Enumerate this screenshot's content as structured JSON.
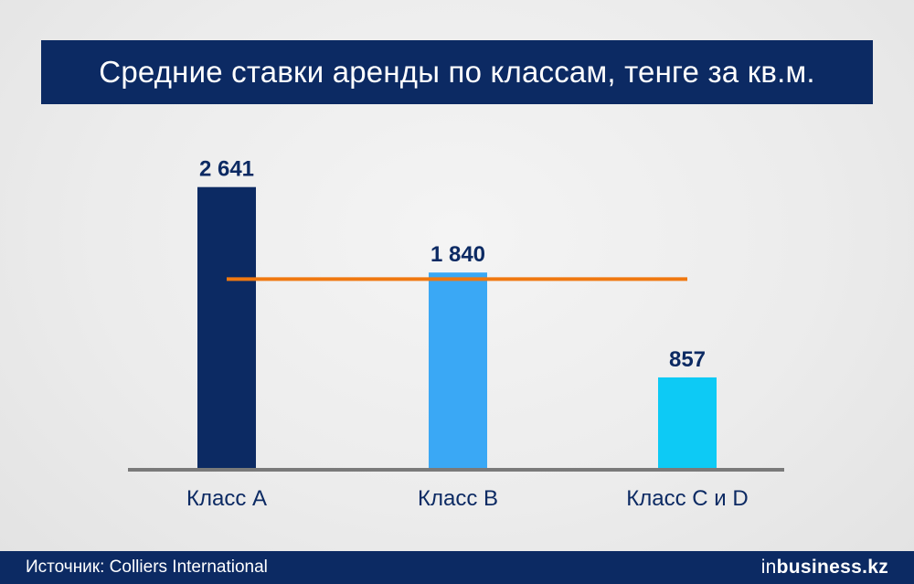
{
  "title": "Средние ставки аренды по классам, тенге за кв.м.",
  "chart_data": {
    "type": "bar",
    "categories": [
      "Класс А",
      "Класс В",
      "Класс С и D"
    ],
    "values": [
      2641,
      1840,
      857
    ],
    "value_labels": [
      "2 641",
      "1 840",
      "857"
    ],
    "bar_colors": [
      "#0c2a63",
      "#3aa8f5",
      "#0dcaf5"
    ],
    "reference_line": {
      "value": 1779,
      "color": "#f07810"
    },
    "axis_color": "#7a7a7a",
    "ylim": [
      0,
      3000
    ],
    "xlabel": "",
    "ylabel": "",
    "grid": false,
    "legend": "none"
  },
  "footer": {
    "source": "Источник: Colliers International",
    "brand_prefix": "in",
    "brand_suffix": "business.kz"
  }
}
